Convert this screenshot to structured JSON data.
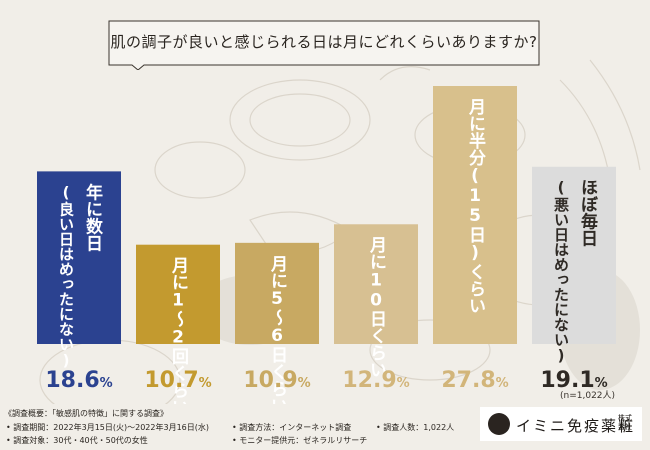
{
  "chart_data": {
    "type": "bar",
    "title": "肌の調子が良いと感じられる日は月にどれくらいありますか?",
    "categories": [
      [
        "年に数日",
        "(良い日はめったにない)"
      ],
      [
        "月に1～2回くらい"
      ],
      [
        "月に5～6日くらい"
      ],
      [
        "月に10日くらい"
      ],
      [
        "月に半分(15日)くらい"
      ],
      [
        "ほぼ毎日",
        "(悪い日はめったにない)"
      ]
    ],
    "values": [
      18.6,
      10.7,
      10.9,
      12.9,
      27.8,
      19.1
    ],
    "value_labels": [
      {
        "num": "18.6",
        "unit": "%"
      },
      {
        "num": "10.7",
        "unit": "%"
      },
      {
        "num": "10.9",
        "unit": "%"
      },
      {
        "num": "12.9",
        "unit": "%"
      },
      {
        "num": "27.8",
        "unit": "%"
      },
      {
        "num": "19.1",
        "unit": "%"
      }
    ],
    "bar_colors": [
      "#2b4290",
      "#c39a2f",
      "#c8a962",
      "#d7c092",
      "#d8c08c",
      "#dcdcdc"
    ],
    "value_colors": [
      "#2b4290",
      "#c39a2f",
      "#c8a962",
      "#d2b57a",
      "#d2b57a",
      "#2f2a25"
    ],
    "n_label": "(n=1,022人)",
    "grid": false,
    "legend": "none"
  },
  "footer": {
    "survey_overview": "《調査概要：「敏感肌の特徴」に関する調査》",
    "period": "• 調査期間：2022年3月15日(火)～2022年3月16日(水)",
    "method": "• 調査方法：インターネット調査",
    "count": "• 調査人数：1,022人",
    "target": "• 調査対象：30代・40代・50代の女性",
    "provider": "• モニター提供元：ゼネラルリサーチ"
  },
  "logo": {
    "name": "イミニ免疫薬粧",
    "suffix": "株式会社",
    "mark_icon": "imini-logo-icon"
  }
}
